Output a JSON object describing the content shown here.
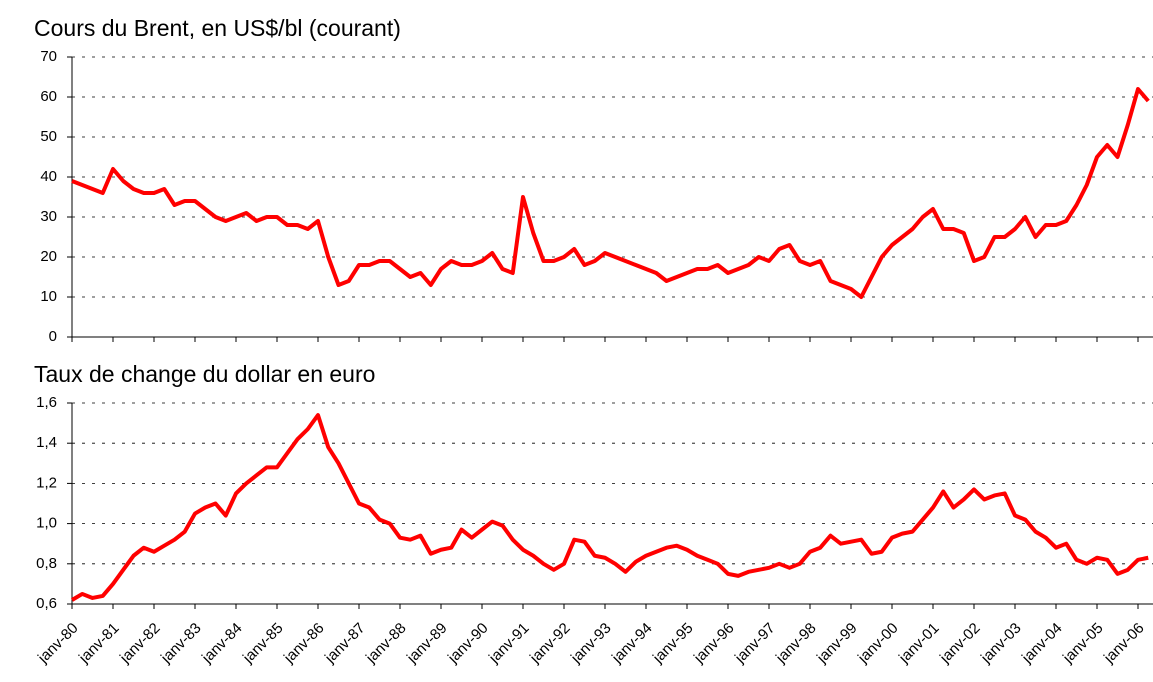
{
  "chart_data": [
    {
      "type": "line",
      "title": "Cours du Brent, en US$/bl (courant)",
      "series": [
        {
          "name": "Brent",
          "color": "#ff0000",
          "values": [
            39,
            38,
            37,
            36,
            42,
            39,
            37,
            36,
            36,
            37,
            33,
            34,
            34,
            32,
            30,
            29,
            30,
            31,
            29,
            30,
            30,
            28,
            28,
            27,
            29,
            20,
            13,
            14,
            18,
            18,
            19,
            19,
            17,
            15,
            16,
            13,
            17,
            19,
            18,
            18,
            19,
            21,
            17,
            16,
            35,
            26,
            19,
            19,
            20,
            22,
            18,
            19,
            21,
            20,
            19,
            18,
            17,
            16,
            14,
            15,
            16,
            17,
            17,
            18,
            16,
            17,
            18,
            20,
            19,
            22,
            23,
            19,
            18,
            19,
            14,
            13,
            12,
            10,
            15,
            20,
            23,
            25,
            27,
            30,
            32,
            27,
            27,
            26,
            19,
            20,
            25,
            25,
            27,
            30,
            25,
            28,
            28,
            29,
            33,
            38,
            45,
            48,
            45,
            53,
            62,
            59
          ]
        }
      ],
      "ylim": [
        0,
        70
      ],
      "yticks": [
        0,
        10,
        20,
        30,
        40,
        50,
        60,
        70
      ],
      "grid": true
    },
    {
      "type": "line",
      "title": "Taux de change du dollar en euro",
      "categories": [
        "janv-80",
        null,
        null,
        null,
        "janv-81",
        null,
        null,
        null,
        "janv-82",
        null,
        null,
        null,
        "janv-83",
        null,
        null,
        null,
        "janv-84",
        null,
        null,
        null,
        "janv-85",
        null,
        null,
        null,
        "janv-86",
        null,
        null,
        null,
        "janv-87",
        null,
        null,
        null,
        "janv-88",
        null,
        null,
        null,
        "janv-89",
        null,
        null,
        null,
        "janv-90",
        null,
        null,
        null,
        "janv-91",
        null,
        null,
        null,
        "janv-92",
        null,
        null,
        null,
        "janv-93",
        null,
        null,
        null,
        "janv-94",
        null,
        null,
        null,
        "janv-95",
        null,
        null,
        null,
        "janv-96",
        null,
        null,
        null,
        "janv-97",
        null,
        null,
        null,
        "janv-98",
        null,
        null,
        null,
        "janv-99",
        null,
        null,
        null,
        "janv-00",
        null,
        null,
        null,
        "janv-01",
        null,
        null,
        null,
        "janv-02",
        null,
        null,
        null,
        "janv-03",
        null,
        null,
        null,
        "janv-04",
        null,
        null,
        null,
        "janv-05",
        null,
        null,
        null,
        "janv-06",
        null
      ],
      "series": [
        {
          "name": "Taux de change",
          "color": "#ff0000",
          "values": [
            0.62,
            0.65,
            0.63,
            0.64,
            0.7,
            0.77,
            0.84,
            0.88,
            0.86,
            0.89,
            0.92,
            0.96,
            1.05,
            1.08,
            1.1,
            1.04,
            1.15,
            1.2,
            1.24,
            1.28,
            1.28,
            1.35,
            1.42,
            1.47,
            1.54,
            1.38,
            1.3,
            1.2,
            1.1,
            1.08,
            1.02,
            1.0,
            0.93,
            0.92,
            0.94,
            0.85,
            0.87,
            0.88,
            0.97,
            0.93,
            0.97,
            1.01,
            0.99,
            0.92,
            0.87,
            0.84,
            0.8,
            0.77,
            0.8,
            0.92,
            0.91,
            0.84,
            0.83,
            0.8,
            0.76,
            0.81,
            0.84,
            0.86,
            0.88,
            0.89,
            0.87,
            0.84,
            0.82,
            0.8,
            0.75,
            0.74,
            0.76,
            0.77,
            0.78,
            0.8,
            0.78,
            0.8,
            0.86,
            0.88,
            0.94,
            0.9,
            0.91,
            0.92,
            0.85,
            0.86,
            0.93,
            0.95,
            0.96,
            1.02,
            1.08,
            1.16,
            1.08,
            1.12,
            1.17,
            1.12,
            1.14,
            1.15,
            1.04,
            1.02,
            0.96,
            0.93,
            0.88,
            0.9,
            0.82,
            0.8,
            0.83,
            0.82,
            0.75,
            0.77,
            0.82,
            0.83
          ]
        }
      ],
      "ylim": [
        0.6,
        1.6
      ],
      "yticks": [
        {
          "value": 0.6,
          "label": "0,6"
        },
        {
          "value": 0.8,
          "label": "0,8"
        },
        {
          "value": 1.0,
          "label": "1,0"
        },
        {
          "value": 1.2,
          "label": "1,2"
        },
        {
          "value": 1.4,
          "label": "1,4"
        },
        {
          "value": 1.6,
          "label": "1,6"
        }
      ],
      "grid": true
    }
  ]
}
